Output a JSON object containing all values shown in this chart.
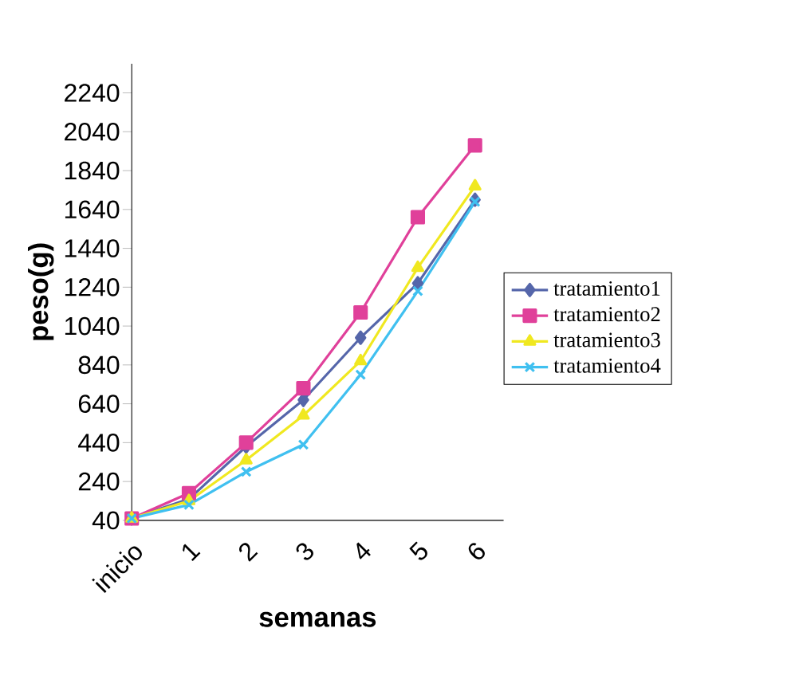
{
  "chart_data": {
    "type": "line",
    "xlabel": "semanas",
    "ylabel": "peso(g)",
    "categories": [
      "inicio",
      "1",
      "2",
      "3",
      "4",
      "5",
      "6"
    ],
    "series": [
      {
        "name": "tratamiento1",
        "color": "#5566aa",
        "marker": "diamond",
        "values": [
          50,
          150,
          420,
          660,
          980,
          1260,
          1690
        ]
      },
      {
        "name": "tratamiento2",
        "color": "#e0409a",
        "marker": "square",
        "values": [
          50,
          180,
          440,
          720,
          1110,
          1600,
          1970
        ]
      },
      {
        "name": "tratamiento3",
        "color": "#f0e820",
        "marker": "triangle",
        "values": [
          50,
          140,
          350,
          580,
          860,
          1340,
          1760
        ]
      },
      {
        "name": "tratamiento4",
        "color": "#40c0f0",
        "marker": "cross",
        "values": [
          50,
          120,
          290,
          430,
          790,
          1220,
          1680
        ]
      }
    ],
    "ylim": [
      40,
      2390
    ],
    "yticks": [
      40,
      240,
      440,
      640,
      840,
      1040,
      1240,
      1440,
      1640,
      1840,
      2040,
      2240
    ],
    "legend": "right",
    "grid": false
  }
}
